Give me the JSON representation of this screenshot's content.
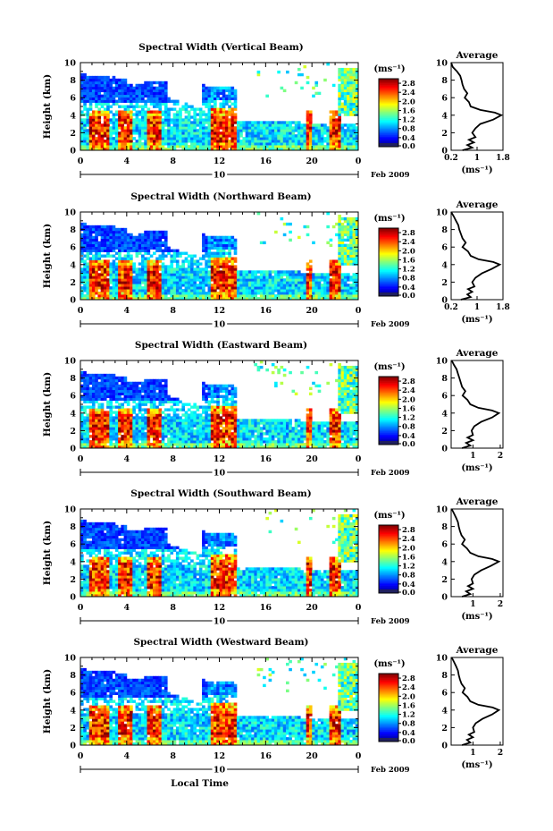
{
  "chart_data": {
    "type": "heatmap",
    "panels": [
      {
        "title": "Spectral Width (Vertical Beam)",
        "profile_xticks": [
          "0.2",
          "1",
          "1.8"
        ],
        "profile_xrange": [
          0.2,
          1.8
        ],
        "profile": [
          [
            0,
            0.55
          ],
          [
            0.3,
            0.85
          ],
          [
            0.6,
            0.7
          ],
          [
            0.9,
            0.9
          ],
          [
            1.2,
            0.75
          ],
          [
            1.5,
            0.95
          ],
          [
            2,
            0.85
          ],
          [
            2.5,
            0.95
          ],
          [
            3,
            1.1
          ],
          [
            3.5,
            1.5
          ],
          [
            4,
            1.75
          ],
          [
            4.3,
            1.55
          ],
          [
            4.6,
            1.1
          ],
          [
            5,
            0.8
          ],
          [
            5.5,
            0.75
          ],
          [
            6,
            0.62
          ],
          [
            6.5,
            0.7
          ],
          [
            7,
            0.6
          ],
          [
            7.5,
            0.55
          ],
          [
            8,
            0.52
          ],
          [
            8.5,
            0.48
          ],
          [
            9,
            0.38
          ],
          [
            9.5,
            0.25
          ],
          [
            10,
            0.2
          ]
        ]
      },
      {
        "title": "Spectral Width (Northward Beam)",
        "profile_xticks": [
          "0.2",
          "1",
          "1.8"
        ],
        "profile_xrange": [
          0.2,
          1.8
        ],
        "profile": [
          [
            0,
            0.5
          ],
          [
            0.3,
            0.8
          ],
          [
            0.6,
            0.7
          ],
          [
            0.9,
            0.85
          ],
          [
            1.2,
            0.72
          ],
          [
            1.5,
            0.92
          ],
          [
            2,
            0.85
          ],
          [
            2.5,
            0.95
          ],
          [
            3,
            1.15
          ],
          [
            3.5,
            1.45
          ],
          [
            4,
            1.7
          ],
          [
            4.3,
            1.5
          ],
          [
            4.6,
            1.05
          ],
          [
            5,
            0.8
          ],
          [
            5.5,
            0.72
          ],
          [
            6,
            0.55
          ],
          [
            6.5,
            0.65
          ],
          [
            7,
            0.55
          ],
          [
            7.5,
            0.5
          ],
          [
            8,
            0.45
          ],
          [
            8.5,
            0.42
          ],
          [
            9,
            0.35
          ],
          [
            9.5,
            0.28
          ],
          [
            10,
            0.2
          ]
        ]
      },
      {
        "title": "Spectral Width (Eastward Beam)",
        "profile_xticks": [
          "1",
          "2"
        ],
        "profile_xrange": [
          0.2,
          2.1
        ],
        "profile": [
          [
            0,
            0.6
          ],
          [
            0.3,
            0.9
          ],
          [
            0.6,
            0.75
          ],
          [
            0.9,
            1.0
          ],
          [
            1.2,
            0.8
          ],
          [
            1.5,
            1.0
          ],
          [
            2,
            0.95
          ],
          [
            2.5,
            1.05
          ],
          [
            3,
            1.3
          ],
          [
            3.5,
            1.7
          ],
          [
            4,
            1.95
          ],
          [
            4.3,
            1.7
          ],
          [
            4.6,
            1.2
          ],
          [
            5,
            0.9
          ],
          [
            5.5,
            0.8
          ],
          [
            6,
            0.62
          ],
          [
            6.5,
            0.72
          ],
          [
            7,
            0.6
          ],
          [
            7.5,
            0.55
          ],
          [
            8,
            0.5
          ],
          [
            8.5,
            0.45
          ],
          [
            9,
            0.4
          ],
          [
            9.5,
            0.3
          ],
          [
            10,
            0.22
          ]
        ]
      },
      {
        "title": "Spectral Width (Southward Beam)",
        "profile_xticks": [
          "1",
          "2"
        ],
        "profile_xrange": [
          0.2,
          2.1
        ],
        "profile": [
          [
            0,
            0.6
          ],
          [
            0.3,
            0.9
          ],
          [
            0.6,
            0.75
          ],
          [
            0.9,
            1.0
          ],
          [
            1.2,
            0.82
          ],
          [
            1.5,
            1.0
          ],
          [
            2,
            0.95
          ],
          [
            2.5,
            1.05
          ],
          [
            3,
            1.3
          ],
          [
            3.5,
            1.65
          ],
          [
            4,
            1.95
          ],
          [
            4.3,
            1.7
          ],
          [
            4.6,
            1.2
          ],
          [
            5,
            0.9
          ],
          [
            5.5,
            0.78
          ],
          [
            6,
            0.6
          ],
          [
            6.5,
            0.7
          ],
          [
            7,
            0.58
          ],
          [
            7.5,
            0.52
          ],
          [
            8,
            0.48
          ],
          [
            8.5,
            0.45
          ],
          [
            9,
            0.38
          ],
          [
            9.5,
            0.3
          ],
          [
            10,
            0.22
          ]
        ]
      },
      {
        "title": "Spectral Width (Westward Beam)",
        "profile_xticks": [
          "1",
          "2"
        ],
        "profile_xrange": [
          0.2,
          2.1
        ],
        "profile": [
          [
            0,
            0.6
          ],
          [
            0.3,
            0.9
          ],
          [
            0.6,
            0.78
          ],
          [
            0.9,
            1.0
          ],
          [
            1.2,
            0.85
          ],
          [
            1.5,
            1.05
          ],
          [
            2,
            1.0
          ],
          [
            2.5,
            1.1
          ],
          [
            3,
            1.35
          ],
          [
            3.5,
            1.7
          ],
          [
            4,
            1.95
          ],
          [
            4.3,
            1.72
          ],
          [
            4.6,
            1.2
          ],
          [
            5,
            0.9
          ],
          [
            5.5,
            0.8
          ],
          [
            6,
            0.62
          ],
          [
            6.5,
            0.7
          ],
          [
            7,
            0.58
          ],
          [
            7.5,
            0.52
          ],
          [
            8,
            0.48
          ],
          [
            8.5,
            0.45
          ],
          [
            9,
            0.38
          ],
          [
            9.5,
            0.3
          ],
          [
            10,
            0.22
          ]
        ]
      }
    ],
    "ylabel": "Height (km)",
    "yticks": [
      "0",
      "2",
      "4",
      "6",
      "8",
      "10"
    ],
    "yrange": [
      0,
      10
    ],
    "xticks": [
      "0",
      "4",
      "8",
      "12",
      "16",
      "20",
      "0"
    ],
    "xrange": [
      0,
      24
    ],
    "day_label": "10",
    "month_label": "Feb 2009",
    "xlabel": "Local Time",
    "colorbar_unit": "(ms⁻¹)",
    "colorbar_ticks": [
      "0.0",
      "0.4",
      "0.8",
      "1.2",
      "1.6",
      "2.0",
      "2.4",
      "2.8"
    ],
    "colorbar_range": [
      0,
      3.0
    ],
    "profile_title": "Average",
    "profile_xlabel": "(ms⁻¹)",
    "profile_yticks": [
      "0",
      "2",
      "4",
      "6",
      "8",
      "10"
    ]
  }
}
